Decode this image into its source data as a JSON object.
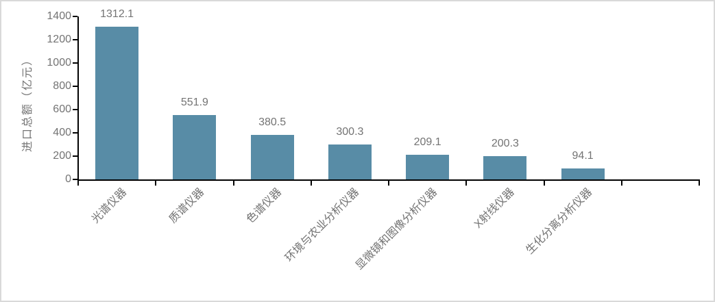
{
  "chart_data": {
    "type": "bar",
    "title": "",
    "xlabel": "",
    "ylabel": "进口总额（亿元）",
    "categories": [
      "光谱仪器",
      "质谱仪器",
      "色谱仪器",
      "环境与农业分析仪器",
      "显微镜和图像分析仪器",
      "X射线仪器",
      "生化分离分析仪器"
    ],
    "values": [
      1312.1,
      551.9,
      380.5,
      300.3,
      209.1,
      200.3,
      94.1
    ],
    "data_labels": [
      "1312.1",
      "551.9",
      "380.5",
      "300.3",
      "209.1",
      "200.3",
      "94.1"
    ],
    "ylim": [
      0,
      1400
    ],
    "yticks": [
      0,
      200,
      400,
      600,
      800,
      1000,
      1200,
      1400
    ],
    "grid": false,
    "legend": "none",
    "category_label_rotation_deg": -45,
    "axis_extends_one_empty_slot": true,
    "colors": {
      "bar": "#588ca6",
      "axis": "#000000",
      "text": "#737373",
      "background": "#ffffff",
      "frame_border": "#d9d9d9"
    }
  }
}
